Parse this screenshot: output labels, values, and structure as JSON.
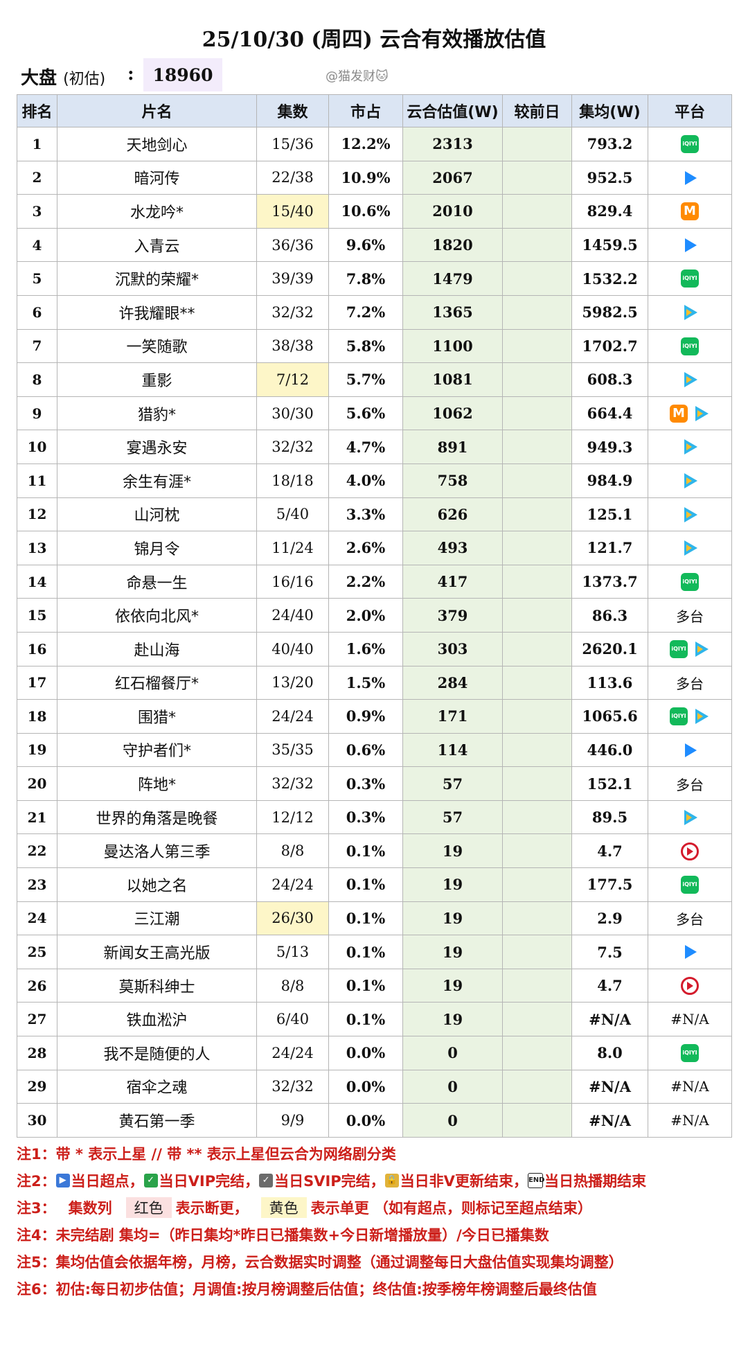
{
  "header": {
    "title": "25/10/30 (周四) 云合有效播放估值",
    "market_label": "大盘",
    "market_sub": "(初估)",
    "market_colon": ":",
    "market_value": "18960",
    "watermark": "@猫发财🐱"
  },
  "columns": [
    "排名",
    "片名",
    "集数",
    "市占",
    "云合估值(W)",
    "较前日",
    "集均(W)",
    "平台"
  ],
  "rows": [
    {
      "rank": "1",
      "name": "天地剑心",
      "ep": "15/36",
      "share": "12.2%",
      "est": "2313",
      "avg": "793.2",
      "platforms": [
        "iqiyi"
      ]
    },
    {
      "rank": "2",
      "name": "暗河传",
      "ep": "22/38",
      "share": "10.9%",
      "est": "2067",
      "avg": "952.5",
      "platforms": [
        "youku"
      ]
    },
    {
      "rank": "3",
      "name": "水龙吟*",
      "ep": "15/40",
      "share": "10.6%",
      "est": "2010",
      "avg": "829.4",
      "platforms": [
        "mango"
      ],
      "ep_highlight": "yellow"
    },
    {
      "rank": "4",
      "name": "入青云",
      "ep": "36/36",
      "share": "9.6%",
      "est": "1820",
      "avg": "1459.5",
      "platforms": [
        "youku"
      ]
    },
    {
      "rank": "5",
      "name": "沉默的荣耀*",
      "ep": "39/39",
      "share": "7.8%",
      "est": "1479",
      "avg": "1532.2",
      "platforms": [
        "iqiyi"
      ]
    },
    {
      "rank": "6",
      "name": "许我耀眼**",
      "ep": "32/32",
      "share": "7.2%",
      "est": "1365",
      "avg": "5982.5",
      "platforms": [
        "tencent"
      ]
    },
    {
      "rank": "7",
      "name": "一笑随歌",
      "ep": "38/38",
      "share": "5.8%",
      "est": "1100",
      "avg": "1702.7",
      "platforms": [
        "iqiyi"
      ]
    },
    {
      "rank": "8",
      "name": "重影",
      "ep": "7/12",
      "share": "5.7%",
      "est": "1081",
      "avg": "608.3",
      "platforms": [
        "tencent"
      ],
      "ep_highlight": "yellow"
    },
    {
      "rank": "9",
      "name": "猎豹*",
      "ep": "30/30",
      "share": "5.6%",
      "est": "1062",
      "avg": "664.4",
      "platforms": [
        "mango",
        "tencent"
      ]
    },
    {
      "rank": "10",
      "name": "宴遇永安",
      "ep": "32/32",
      "share": "4.7%",
      "est": "891",
      "avg": "949.3",
      "platforms": [
        "tencent"
      ]
    },
    {
      "rank": "11",
      "name": "余生有涯*",
      "ep": "18/18",
      "share": "4.0%",
      "est": "758",
      "avg": "984.9",
      "platforms": [
        "tencent"
      ]
    },
    {
      "rank": "12",
      "name": "山河枕",
      "ep": "5/40",
      "share": "3.3%",
      "est": "626",
      "avg": "125.1",
      "platforms": [
        "tencent"
      ]
    },
    {
      "rank": "13",
      "name": "锦月令",
      "ep": "11/24",
      "share": "2.6%",
      "est": "493",
      "avg": "121.7",
      "platforms": [
        "tencent"
      ]
    },
    {
      "rank": "14",
      "name": "命悬一生",
      "ep": "16/16",
      "share": "2.2%",
      "est": "417",
      "avg": "1373.7",
      "platforms": [
        "iqiyi"
      ]
    },
    {
      "rank": "15",
      "name": "依依向北风*",
      "ep": "24/40",
      "share": "2.0%",
      "est": "379",
      "avg": "86.3",
      "platform_text": "多台"
    },
    {
      "rank": "16",
      "name": "赴山海",
      "ep": "40/40",
      "share": "1.6%",
      "est": "303",
      "avg": "2620.1",
      "platforms": [
        "iqiyi",
        "tencent"
      ]
    },
    {
      "rank": "17",
      "name": "红石榴餐厅*",
      "ep": "13/20",
      "share": "1.5%",
      "est": "284",
      "avg": "113.6",
      "platform_text": "多台"
    },
    {
      "rank": "18",
      "name": "围猎*",
      "ep": "24/24",
      "share": "0.9%",
      "est": "171",
      "avg": "1065.6",
      "platforms": [
        "iqiyi",
        "tencent"
      ]
    },
    {
      "rank": "19",
      "name": "守护者们*",
      "ep": "35/35",
      "share": "0.6%",
      "est": "114",
      "avg": "446.0",
      "platforms": [
        "youku"
      ]
    },
    {
      "rank": "20",
      "name": "阵地*",
      "ep": "32/32",
      "share": "0.3%",
      "est": "57",
      "avg": "152.1",
      "platform_text": "多台"
    },
    {
      "rank": "21",
      "name": "世界的角落是晚餐",
      "ep": "12/12",
      "share": "0.3%",
      "est": "57",
      "avg": "89.5",
      "platforms": [
        "tencent"
      ]
    },
    {
      "rank": "22",
      "name": "曼达洛人第三季",
      "ep": "8/8",
      "share": "0.1%",
      "est": "19",
      "avg": "4.7",
      "platforms": [
        "migu"
      ]
    },
    {
      "rank": "23",
      "name": "以她之名",
      "ep": "24/24",
      "share": "0.1%",
      "est": "19",
      "avg": "177.5",
      "platforms": [
        "iqiyi"
      ]
    },
    {
      "rank": "24",
      "name": "三江潮",
      "ep": "26/30",
      "share": "0.1%",
      "est": "19",
      "avg": "2.9",
      "platform_text": "多台",
      "ep_highlight": "yellow"
    },
    {
      "rank": "25",
      "name": "新闻女王高光版",
      "ep": "5/13",
      "share": "0.1%",
      "est": "19",
      "avg": "7.5",
      "platforms": [
        "youku"
      ]
    },
    {
      "rank": "26",
      "name": "莫斯科绅士",
      "ep": "8/8",
      "share": "0.1%",
      "est": "19",
      "avg": "4.7",
      "platforms": [
        "migu"
      ]
    },
    {
      "rank": "27",
      "name": "铁血淞沪",
      "ep": "6/40",
      "share": "0.1%",
      "est": "19",
      "avg": "#N/A",
      "platform_text": "#N/A"
    },
    {
      "rank": "28",
      "name": "我不是随便的人",
      "ep": "24/24",
      "share": "0.0%",
      "est": "0",
      "avg": "8.0",
      "platforms": [
        "iqiyi"
      ]
    },
    {
      "rank": "29",
      "name": "宿伞之魂",
      "ep": "32/32",
      "share": "0.0%",
      "est": "0",
      "avg": "#N/A",
      "platform_text": "#N/A"
    },
    {
      "rank": "30",
      "name": "黄石第一季",
      "ep": "9/9",
      "share": "0.0%",
      "est": "0",
      "avg": "#N/A",
      "platform_text": "#N/A"
    }
  ],
  "platform_icons": {
    "iqiyi": {
      "glyph": "iQIYI",
      "color": "#12b95a"
    },
    "youku": {
      "glyph": "",
      "color": "#1e8cff"
    },
    "tencent": {
      "glyph": "",
      "color": "#2fb5ea"
    },
    "mango": {
      "glyph": "M",
      "color": "#ff8a00"
    },
    "migu": {
      "glyph": "",
      "color": "#d41b2c"
    }
  },
  "notes": {
    "n1": "注1：带 * 表示上星 // 带 ** 表示上星但云合为网络剧分类",
    "n2_label": "注2：",
    "n2_a": "当日超点，",
    "n2_b": "当日VIP完结，",
    "n2_c": "当日SVIP完结，",
    "n2_d": "当日非V更新结束，",
    "n2_e": "当日热播期结束",
    "n2_end_glyph": "END",
    "n3_label": "注3：",
    "n3_a": "集数列",
    "n3_red": "红色",
    "n3_b": "表示断更，",
    "n3_yellow": "黄色",
    "n3_c": "表示单更 （如有超点，则标记至超点结束）",
    "n4": "注4：未完结剧 集均=（昨日集均*昨日已播集数+今日新增播放量）/今日已播集数",
    "n5": "注5：集均估值会依据年榜，月榜，云合数据实时调整（通过调整每日大盘估值实现集均调整）",
    "n6": "注6：初估:每日初步估值；月调值:按月榜调整后估值；终估值:按季榜年榜调整后最终估值"
  }
}
